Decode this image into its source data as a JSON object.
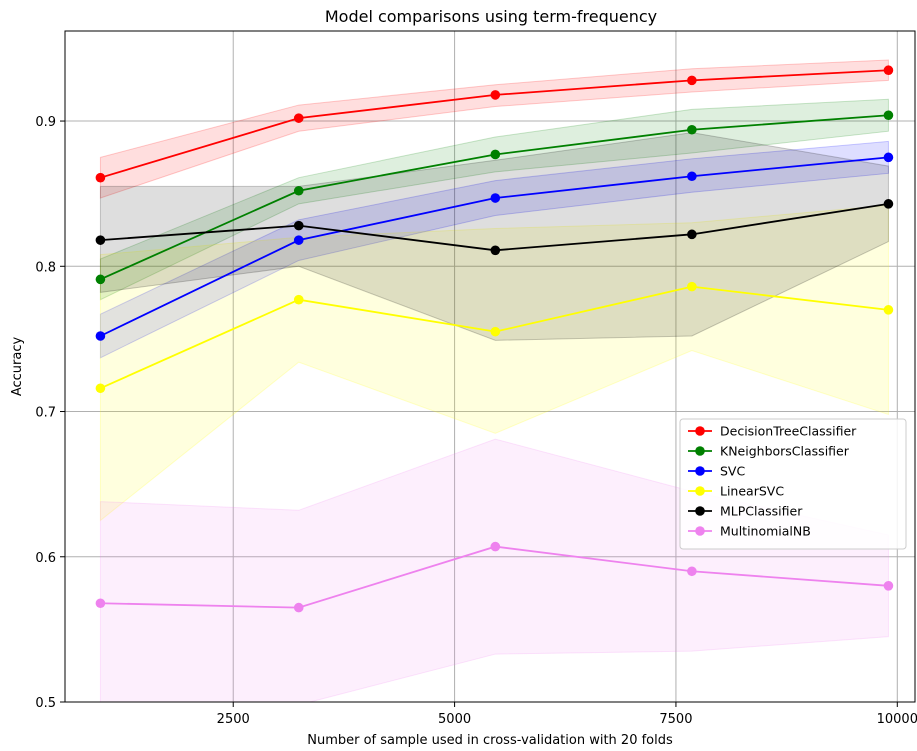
{
  "chart_data": {
    "type": "line",
    "title": "Model comparisons using term-frequency",
    "xlabel": "Number of sample used in cross-validation with 20 folds",
    "ylabel": "Accuracy",
    "xlim": [
      600,
      10200
    ],
    "ylim": [
      0.5,
      0.962
    ],
    "xticks": [
      2500,
      5000,
      7500,
      10000
    ],
    "xtick_labels": [
      "2500",
      "5000",
      "7500",
      "10000"
    ],
    "yticks": [
      0.5,
      0.6,
      0.7,
      0.8,
      0.9
    ],
    "ytick_labels": [
      "0.5",
      "0.6",
      "0.7",
      "0.8",
      "0.9"
    ],
    "grid": true,
    "legend_position": "lower-right",
    "x": [
      1000,
      3240,
      5460,
      7680,
      9900
    ],
    "series": [
      {
        "name": "DecisionTreeClassifier",
        "color": "#ff0000",
        "values": [
          0.861,
          0.902,
          0.918,
          0.928,
          0.935
        ],
        "lower": [
          0.847,
          0.893,
          0.91,
          0.92,
          0.928
        ],
        "upper": [
          0.875,
          0.911,
          0.925,
          0.936,
          0.942
        ]
      },
      {
        "name": "KNeighborsClassifier",
        "color": "#008000",
        "values": [
          0.791,
          0.852,
          0.877,
          0.894,
          0.904
        ],
        "lower": [
          0.777,
          0.843,
          0.865,
          0.878,
          0.893
        ],
        "upper": [
          0.805,
          0.861,
          0.889,
          0.908,
          0.915
        ]
      },
      {
        "name": "SVC",
        "color": "#0000ff",
        "values": [
          0.752,
          0.818,
          0.847,
          0.862,
          0.875
        ],
        "lower": [
          0.737,
          0.804,
          0.835,
          0.851,
          0.864
        ],
        "upper": [
          0.767,
          0.832,
          0.859,
          0.874,
          0.886
        ]
      },
      {
        "name": "LinearSVC",
        "color": "#ffff00",
        "values": [
          0.716,
          0.777,
          0.755,
          0.786,
          0.77
        ],
        "lower": [
          0.625,
          0.734,
          0.685,
          0.742,
          0.698
        ],
        "upper": [
          0.808,
          0.82,
          0.826,
          0.83,
          0.842
        ]
      },
      {
        "name": "MLPClassifier",
        "color": "#000000",
        "values": [
          0.818,
          0.828,
          0.811,
          0.822,
          0.843
        ],
        "lower": [
          0.782,
          0.8,
          0.749,
          0.752,
          0.817
        ],
        "upper": [
          0.855,
          0.855,
          0.873,
          0.892,
          0.869
        ]
      },
      {
        "name": "MultinomialNB",
        "color": "#ee82ee",
        "values": [
          0.568,
          0.565,
          0.607,
          0.59,
          0.58
        ],
        "lower": [
          0.498,
          0.498,
          0.533,
          0.535,
          0.545
        ],
        "upper": [
          0.638,
          0.632,
          0.681,
          0.645,
          0.615
        ]
      }
    ]
  }
}
